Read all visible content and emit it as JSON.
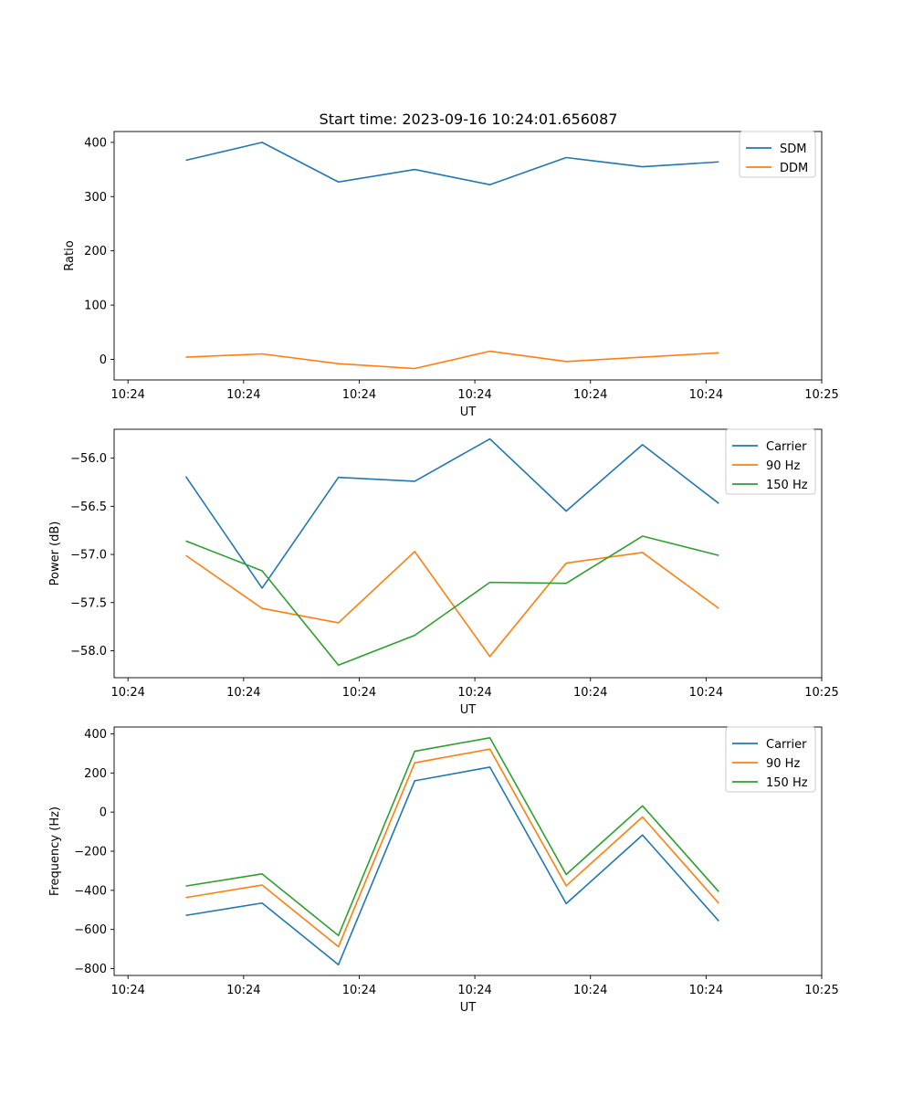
{
  "figure_title": "Start time: 2023-09-16 10:24:01.656087",
  "chart_data": [
    {
      "type": "line",
      "title": "Start time: 2023-09-16 10:24:01.656087",
      "xlabel": "UT",
      "ylabel": "Ratio",
      "x_tick_labels": [
        "10:24",
        "10:24",
        "10:24",
        "10:24",
        "10:24",
        "10:24",
        "10:25"
      ],
      "x_tick_values": [
        0,
        1,
        2,
        3,
        4,
        5,
        6
      ],
      "xlim": [
        -0.12,
        6
      ],
      "x": [
        0.5,
        1.16,
        1.82,
        2.48,
        3.13,
        3.79,
        4.45,
        5.11
      ],
      "ylim": [
        -38,
        420
      ],
      "y_ticks": [
        0,
        100,
        200,
        300,
        400
      ],
      "legend_position": "top-right",
      "series": [
        {
          "name": "SDM",
          "color": "#1f77b4",
          "values": [
            367,
            400,
            327,
            350,
            322,
            372,
            355,
            364
          ]
        },
        {
          "name": "DDM",
          "color": "#ff7f0e",
          "values": [
            4,
            10,
            -8,
            -17,
            15,
            -4,
            4,
            12
          ]
        }
      ]
    },
    {
      "type": "line",
      "xlabel": "UT",
      "ylabel": "Power (dB)",
      "x_tick_labels": [
        "10:24",
        "10:24",
        "10:24",
        "10:24",
        "10:24",
        "10:24",
        "10:25"
      ],
      "x_tick_values": [
        0,
        1,
        2,
        3,
        4,
        5,
        6
      ],
      "xlim": [
        -0.12,
        6
      ],
      "x": [
        0.5,
        1.16,
        1.82,
        2.48,
        3.13,
        3.79,
        4.45,
        5.11
      ],
      "ylim": [
        -58.28,
        -55.7
      ],
      "y_ticks": [
        -58.0,
        -57.5,
        -57.0,
        -56.5,
        -56.0
      ],
      "y_tick_labels": [
        "−58.0",
        "−57.5",
        "−57.0",
        "−56.5",
        "−56.0"
      ],
      "legend_position": "top-right",
      "series": [
        {
          "name": "Carrier",
          "color": "#1f77b4",
          "values": [
            -56.19,
            -57.35,
            -56.2,
            -56.24,
            -55.8,
            -56.55,
            -55.86,
            -56.47
          ]
        },
        {
          "name": "90 Hz",
          "color": "#ff7f0e",
          "values": [
            -57.01,
            -57.56,
            -57.71,
            -56.97,
            -58.06,
            -57.09,
            -56.98,
            -57.56
          ]
        },
        {
          "name": "150 Hz",
          "color": "#2ca02c",
          "values": [
            -56.86,
            -57.17,
            -58.15,
            -57.84,
            -57.29,
            -57.3,
            -56.81,
            -57.01
          ]
        }
      ]
    },
    {
      "type": "line",
      "xlabel": "UT",
      "ylabel": "Frequency (Hz)",
      "x_tick_labels": [
        "10:24",
        "10:24",
        "10:24",
        "10:24",
        "10:24",
        "10:24",
        "10:25"
      ],
      "x_tick_values": [
        0,
        1,
        2,
        3,
        4,
        5,
        6
      ],
      "xlim": [
        -0.12,
        6
      ],
      "x": [
        0.5,
        1.16,
        1.82,
        2.48,
        3.13,
        3.79,
        4.45,
        5.11
      ],
      "ylim": [
        -835,
        435
      ],
      "y_ticks": [
        -800,
        -600,
        -400,
        -200,
        0,
        200,
        400
      ],
      "y_tick_labels": [
        "−800",
        "−600",
        "−400",
        "−200",
        "0",
        "200",
        "400"
      ],
      "legend_position": "top-right",
      "series": [
        {
          "name": "Carrier",
          "color": "#1f77b4",
          "values": [
            -528,
            -465,
            -780,
            160,
            230,
            -468,
            -117,
            -557
          ]
        },
        {
          "name": "90 Hz",
          "color": "#ff7f0e",
          "values": [
            -437,
            -373,
            -688,
            252,
            322,
            -377,
            -25,
            -466
          ]
        },
        {
          "name": "150 Hz",
          "color": "#2ca02c",
          "values": [
            -378,
            -316,
            -631,
            311,
            380,
            -319,
            32,
            -407
          ]
        }
      ]
    }
  ]
}
